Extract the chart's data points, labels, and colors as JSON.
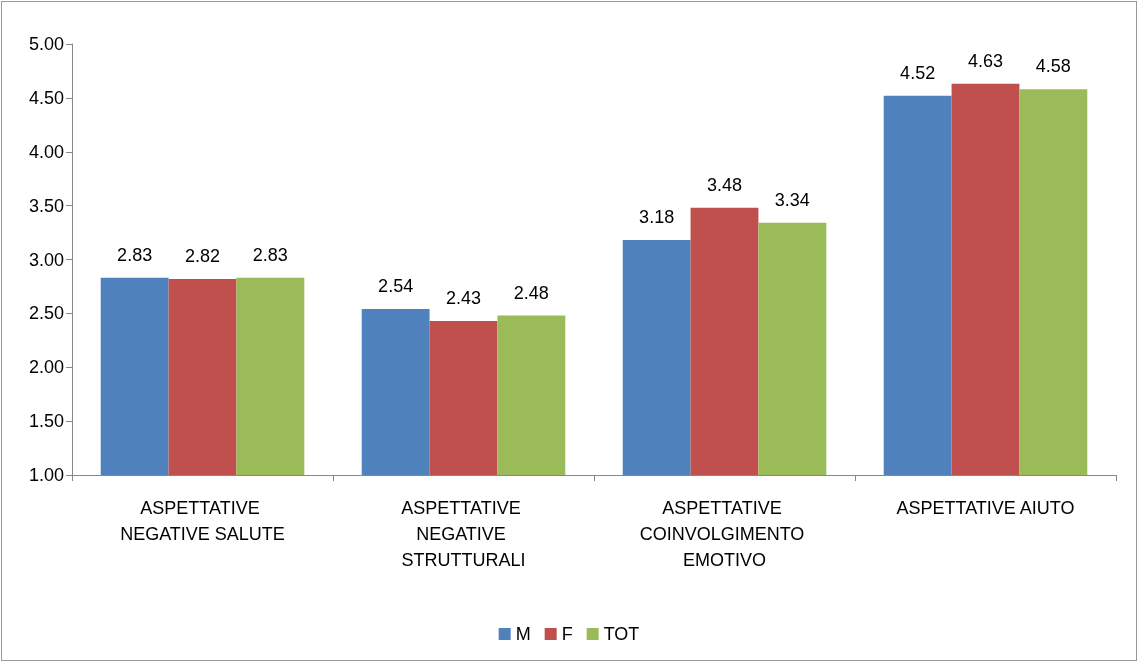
{
  "chart_data": {
    "type": "bar",
    "categories": [
      "ASPETTATIVE NEGATIVE SALUTE",
      "ASPETTATIVE NEGATIVE STRUTTURALI",
      "ASPETTATIVE COINVOLGIMENTO EMOTIVO",
      "ASPETTATIVE AIUTO"
    ],
    "series": [
      {
        "name": "M",
        "color": "#4f81bd",
        "values": [
          2.83,
          2.54,
          3.18,
          4.52
        ]
      },
      {
        "name": "F",
        "color": "#c0504d",
        "values": [
          2.82,
          2.43,
          3.48,
          4.63
        ]
      },
      {
        "name": "TOT",
        "color": "#9bbb59",
        "values": [
          2.83,
          2.48,
          3.34,
          4.58
        ]
      }
    ],
    "ylim": [
      1,
      5
    ],
    "yticks": [
      {
        "value": 1,
        "label": "1.00"
      },
      {
        "value": 1.5,
        "label": "1.50"
      },
      {
        "value": 2,
        "label": "2.00"
      },
      {
        "value": 2.5,
        "label": "2.50"
      },
      {
        "value": 3,
        "label": "3.00"
      },
      {
        "value": 3.5,
        "label": "3.50"
      },
      {
        "value": 4,
        "label": "4.00"
      },
      {
        "value": 4.5,
        "label": "4.50"
      },
      {
        "value": 5,
        "label": "5.00"
      }
    ],
    "data_labels": true,
    "grid": false,
    "legend": "bottom"
  }
}
